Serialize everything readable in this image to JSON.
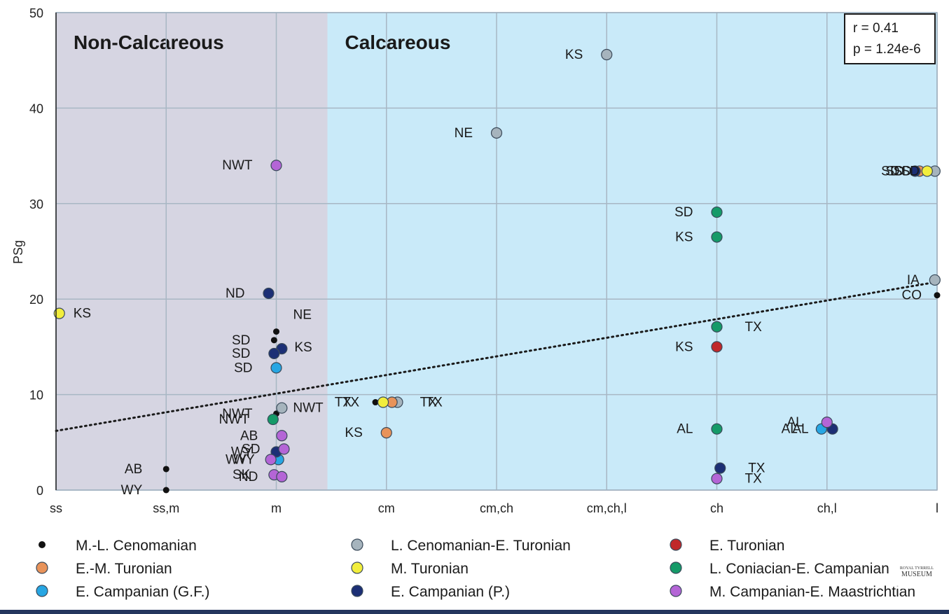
{
  "chart_data": {
    "type": "scatter",
    "ylabel": "PSg",
    "xlabel": "",
    "categories": [
      "ss",
      "ss,m",
      "m",
      "cm",
      "cm,ch",
      "cm,ch,l",
      "ch",
      "ch,l",
      "l"
    ],
    "ylim": [
      0,
      50
    ],
    "yticks": [
      0,
      10,
      20,
      30,
      40,
      50
    ],
    "grid": true,
    "regions": [
      {
        "label": "Non-Calcareous",
        "from": "ss",
        "to": "m",
        "color": "#d6d5e2"
      },
      {
        "label": "Calcareous",
        "from": "m",
        "to": "l",
        "color": "#c9eaf9"
      }
    ],
    "stats": {
      "r": "r = 0.41",
      "p": "p = 1.24e-6"
    },
    "trendline": {
      "x": [
        0,
        8
      ],
      "y": [
        6.2,
        21.8
      ],
      "style": "dotted"
    },
    "legend_position": "bottom",
    "series": [
      {
        "name": "M.-L. Cenomanian",
        "color": "#111111",
        "points": [
          {
            "x": 1.0,
            "y": 2.2,
            "label": "AB"
          },
          {
            "x": 1.0,
            "y": 0.0,
            "label": "WY"
          },
          {
            "x": 1.98,
            "y": 15.7,
            "label": "SD"
          },
          {
            "x": 2.0,
            "y": 16.6,
            "label": "NE"
          },
          {
            "x": 2.0,
            "y": 8.0,
            "label": "NWT"
          },
          {
            "x": 2.9,
            "y": 9.2,
            "label": "TX"
          },
          {
            "x": 8.0,
            "y": 20.4,
            "label": "CO"
          }
        ]
      },
      {
        "name": "L. Cenomanian-E. Turonian",
        "color": "#a6b4bd",
        "points": [
          {
            "x": 4.0,
            "y": 37.4,
            "label": "NE"
          },
          {
            "x": 5.0,
            "y": 45.6,
            "label": "KS"
          },
          {
            "x": 2.05,
            "y": 8.6,
            "label": "NWT"
          },
          {
            "x": 3.1,
            "y": 9.2,
            "label": "TX"
          },
          {
            "x": 7.98,
            "y": 33.4,
            "label": "SD"
          },
          {
            "x": 7.98,
            "y": 22.0,
            "label": "IA"
          }
        ]
      },
      {
        "name": "E. Turonian",
        "color": "#c0282a",
        "points": [
          {
            "x": 6.0,
            "y": 15.0,
            "label": "KS"
          }
        ]
      },
      {
        "name": "E.-M. Turonian",
        "color": "#e8935a",
        "points": [
          {
            "x": 3.0,
            "y": 6.0,
            "label": "KS"
          },
          {
            "x": 3.05,
            "y": 9.2,
            "label": "TX"
          },
          {
            "x": 7.84,
            "y": 33.4,
            "label": "SD"
          }
        ]
      },
      {
        "name": "M. Turonian",
        "color": "#f2ee3c",
        "points": [
          {
            "x": 0.03,
            "y": 18.5,
            "label": "KS"
          },
          {
            "x": 2.97,
            "y": 9.2,
            "label": "TX"
          },
          {
            "x": 7.91,
            "y": 33.4,
            "label": "SD"
          }
        ]
      },
      {
        "name": "L. Coniacian-E. Campanian",
        "color": "#159a68",
        "points": [
          {
            "x": 6.0,
            "y": 29.1,
            "label": "SD"
          },
          {
            "x": 6.0,
            "y": 26.5,
            "label": "KS"
          },
          {
            "x": 6.0,
            "y": 17.1,
            "label": "TX"
          },
          {
            "x": 6.0,
            "y": 6.4,
            "label": "AL"
          },
          {
            "x": 1.97,
            "y": 7.4,
            "label": "NWT"
          }
        ]
      },
      {
        "name": "E. Campanian (G.F.)",
        "color": "#27a6e3",
        "points": [
          {
            "x": 2.0,
            "y": 12.8,
            "label": "SD"
          },
          {
            "x": 2.02,
            "y": 3.2,
            "label": "WY"
          },
          {
            "x": 6.95,
            "y": 6.4,
            "label": "AL"
          }
        ]
      },
      {
        "name": "E. Campanian (P.)",
        "color": "#1c2f75",
        "points": [
          {
            "x": 1.93,
            "y": 20.6,
            "label": "ND"
          },
          {
            "x": 2.05,
            "y": 14.8,
            "label": "KS"
          },
          {
            "x": 1.98,
            "y": 14.3,
            "label": "SD"
          },
          {
            "x": 2.0,
            "y": 4.0,
            "label": "WY"
          },
          {
            "x": 6.03,
            "y": 2.3,
            "label": "TX"
          },
          {
            "x": 7.05,
            "y": 6.4,
            "label": "AL"
          },
          {
            "x": 7.8,
            "y": 33.4,
            "label": "SD"
          }
        ]
      },
      {
        "name": "M. Campanian-E. Maastrichtian",
        "color": "#b465d6",
        "points": [
          {
            "x": 2.0,
            "y": 34.0,
            "label": "NWT"
          },
          {
            "x": 2.05,
            "y": 5.7,
            "label": "AB"
          },
          {
            "x": 2.07,
            "y": 4.3,
            "label": "SD"
          },
          {
            "x": 1.95,
            "y": 3.2,
            "label": "WY"
          },
          {
            "x": 1.98,
            "y": 1.6,
            "label": "SK"
          },
          {
            "x": 2.05,
            "y": 1.4,
            "label": "ND"
          },
          {
            "x": 6.0,
            "y": 1.2,
            "label": "TX"
          },
          {
            "x": 7.0,
            "y": 7.1,
            "label": "AL"
          }
        ]
      }
    ]
  },
  "watermark": {
    "line1": "ROYAL TYRRELL",
    "line2": "MUSEUM"
  }
}
